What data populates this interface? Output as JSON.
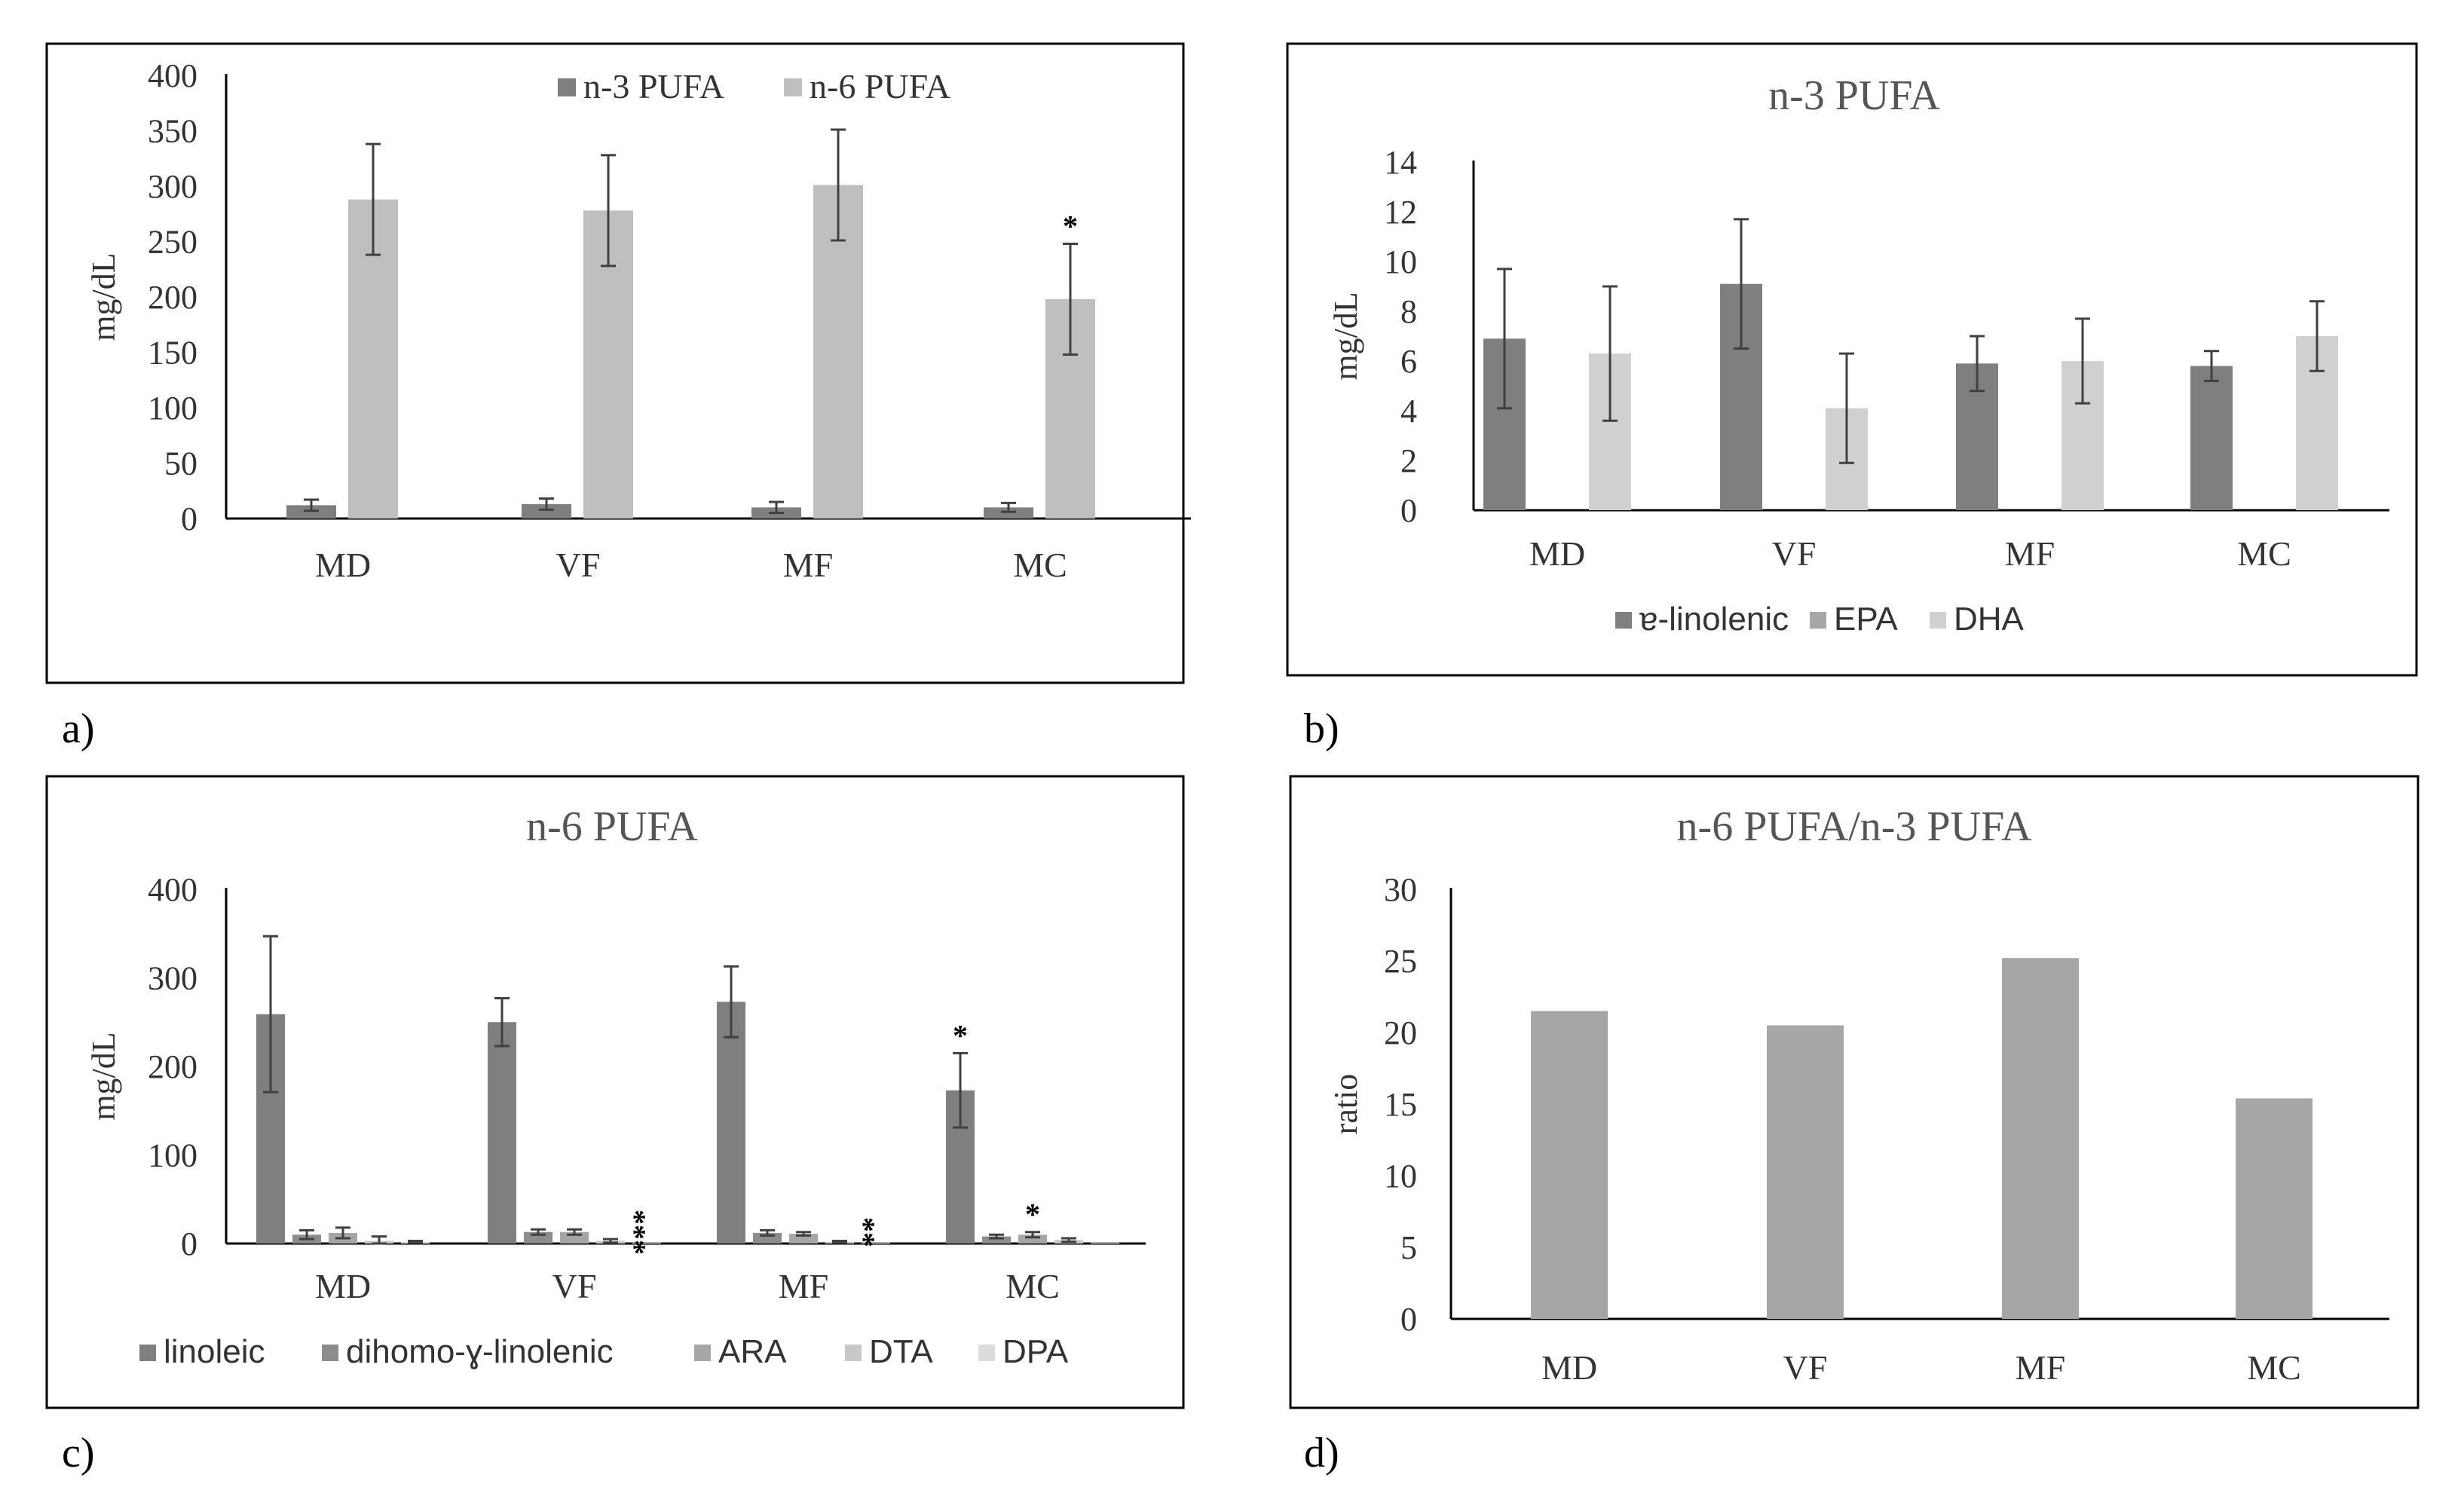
{
  "chart_data": [
    {
      "id": "a",
      "panel_label": "a)",
      "type": "bar",
      "title": "",
      "ylabel": "mg/dL",
      "ylim": [
        0,
        400
      ],
      "yticks": [
        0,
        50,
        100,
        150,
        200,
        250,
        300,
        350,
        400
      ],
      "categories": [
        "MD",
        "VF",
        "MF",
        "MC"
      ],
      "series": [
        {
          "name": "n-3 PUFA",
          "color": "#7f7f7f",
          "values": [
            12,
            13,
            10,
            10
          ],
          "errors": [
            5,
            5,
            5,
            4
          ]
        },
        {
          "name": "n-6 PUFA",
          "color": "#bfbfbf",
          "values": [
            288,
            278,
            301,
            198
          ],
          "errors": [
            50,
            50,
            50,
            50
          ]
        }
      ],
      "annotations": [
        {
          "series": 1,
          "category": 3,
          "text": "*"
        }
      ]
    },
    {
      "id": "b",
      "panel_label": "b)",
      "type": "bar",
      "title": "n-3 PUFA",
      "ylabel": "mg/dL",
      "ylim": [
        0,
        14
      ],
      "yticks": [
        0,
        2,
        4,
        6,
        8,
        10,
        12,
        14
      ],
      "categories": [
        "MD",
        "VF",
        "MF",
        "MC"
      ],
      "series": [
        {
          "name": "ɐ-linolenic",
          "color": "#7f7f7f",
          "values": [
            6.9,
            9.1,
            5.9,
            5.8
          ],
          "errors": [
            2.8,
            2.6,
            1.1,
            0.6
          ]
        },
        {
          "name": "EPA",
          "color": "#a6a6a6",
          "values": [
            0,
            0,
            0,
            0
          ],
          "errors": [
            0,
            0,
            0,
            0
          ]
        },
        {
          "name": "DHA",
          "color": "#d0d0d0",
          "values": [
            6.3,
            4.1,
            6.0,
            7.0
          ],
          "errors": [
            2.7,
            2.2,
            1.7,
            1.4
          ]
        }
      ],
      "annotations": []
    },
    {
      "id": "c",
      "panel_label": "c)",
      "type": "bar",
      "title": "n-6 PUFA",
      "ylabel": "mg/dL",
      "ylim": [
        0,
        400
      ],
      "yticks": [
        0,
        100,
        200,
        300,
        400
      ],
      "categories": [
        "MD",
        "VF",
        "MF",
        "MC"
      ],
      "series": [
        {
          "name": "linoleic",
          "color": "#7f7f7f",
          "values": [
            259,
            250,
            273,
            173
          ],
          "errors": [
            88,
            27,
            40,
            42
          ]
        },
        {
          "name": "dihomo-ɣ-linolenic",
          "color": "#8c8c8c",
          "values": [
            10,
            13,
            12,
            8
          ],
          "errors": [
            5,
            3,
            3,
            2
          ]
        },
        {
          "name": "ARA",
          "color": "#a6a6a6",
          "values": [
            12,
            13,
            11,
            10
          ],
          "errors": [
            6,
            3,
            2,
            3
          ]
        },
        {
          "name": "DTA",
          "color": "#c8c8c8",
          "values": [
            3,
            3,
            2,
            4
          ],
          "errors": [
            5,
            2,
            1,
            2
          ]
        },
        {
          "name": "DPA",
          "color": "#dcdcdc",
          "values": [
            2,
            1,
            1,
            1
          ],
          "errors": [
            1,
            0,
            0,
            0
          ]
        }
      ],
      "annotations": [
        {
          "series": 0,
          "category": 3,
          "text": "*"
        },
        {
          "series": 2,
          "category": 3,
          "text": "*"
        },
        {
          "series": 4,
          "category": 1,
          "text": "***"
        },
        {
          "series": 4,
          "category": 2,
          "text": "**"
        }
      ]
    },
    {
      "id": "d",
      "panel_label": "d)",
      "type": "bar",
      "title": "n-6 PUFA/n-3 PUFA",
      "ylabel": "ratio",
      "ylim": [
        0,
        30
      ],
      "yticks": [
        0,
        5,
        10,
        15,
        20,
        25,
        30
      ],
      "categories": [
        "MD",
        "VF",
        "MF",
        "MC"
      ],
      "series": [
        {
          "name": "ratio",
          "color": "#a6a6a6",
          "values": [
            21.5,
            20.5,
            25.2,
            15.4
          ],
          "errors": [
            0,
            0,
            0,
            0
          ]
        }
      ],
      "annotations": []
    }
  ]
}
